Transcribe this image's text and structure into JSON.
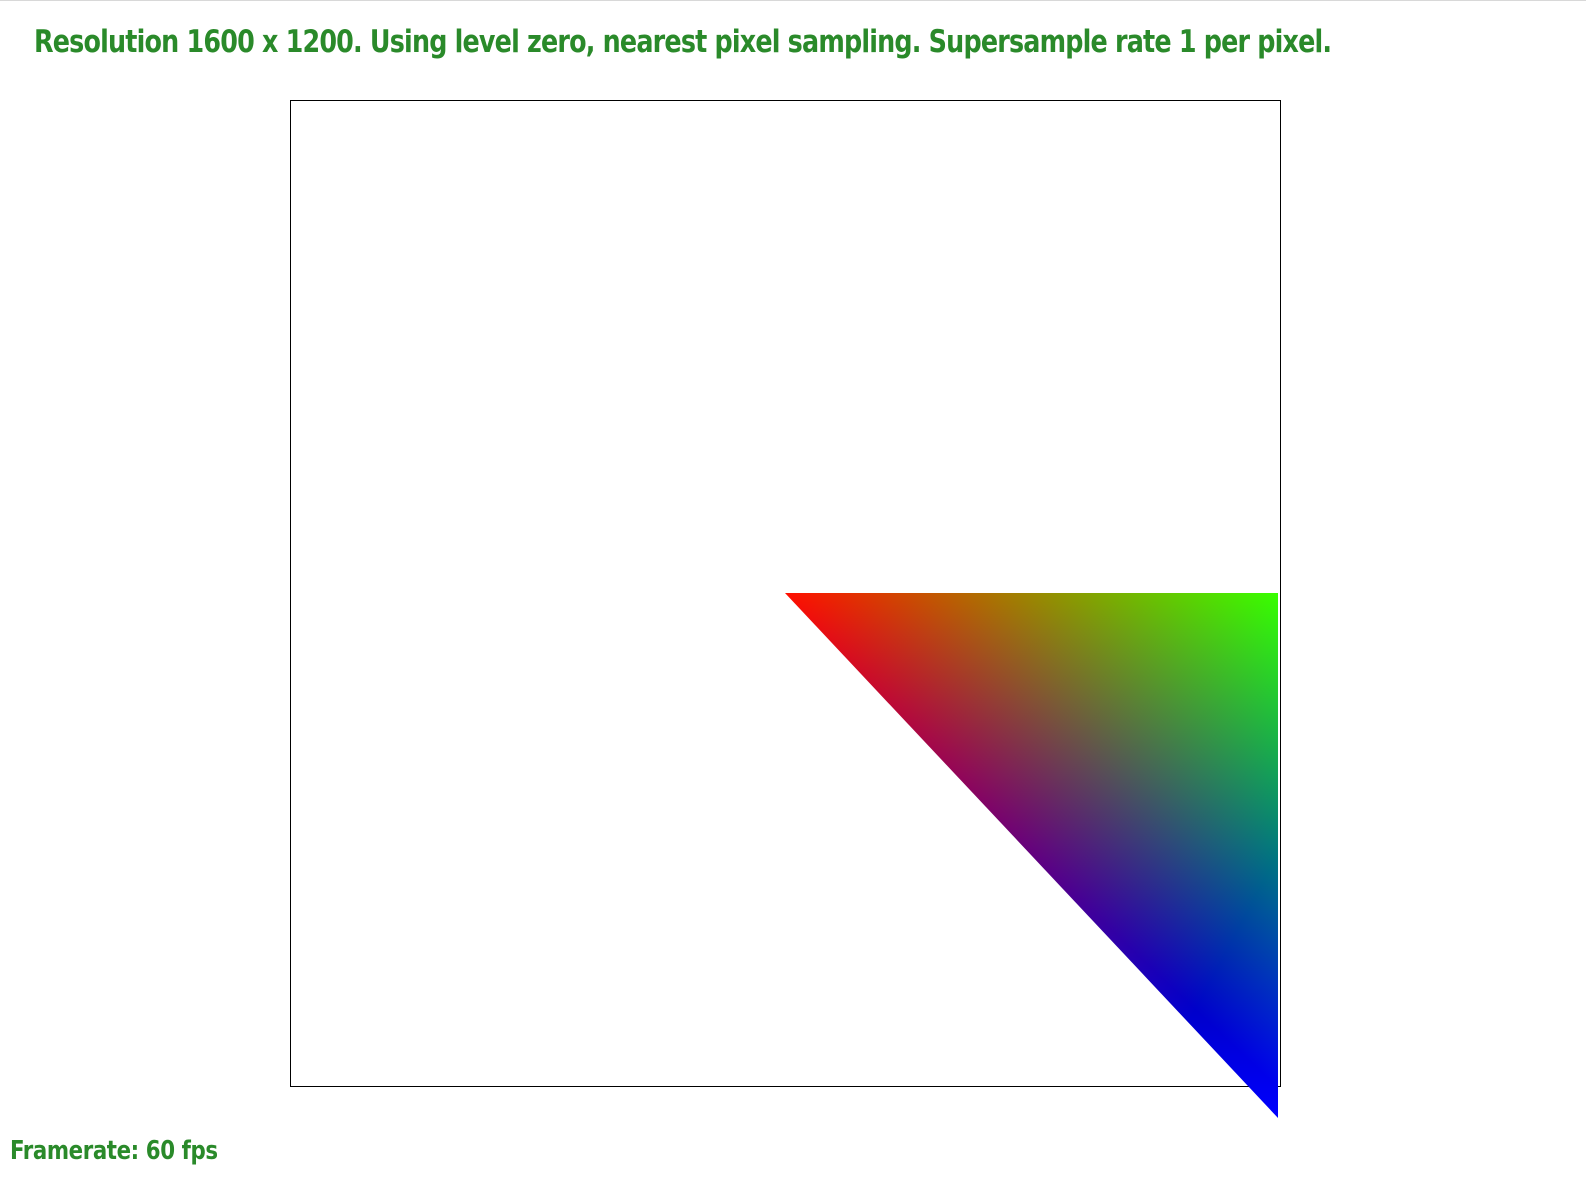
{
  "status": {
    "line": "Resolution 1600 x 1200. Using level zero, nearest pixel sampling. Supersample rate 1 per pixel."
  },
  "framerate": {
    "label": "Framerate: 60 fps"
  },
  "colors": {
    "text": "#2a8a2a",
    "frame_border": "#000000",
    "vertex_a": "#ff0000",
    "vertex_b": "#00ff00",
    "vertex_c": "#0000ff"
  }
}
